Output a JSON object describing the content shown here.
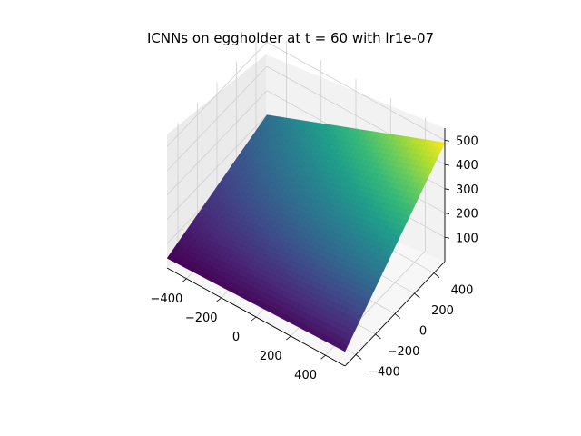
{
  "chart_data": {
    "type": "surface3d",
    "title": "ICNNs on eggholder at t = 60 with lr1e-07",
    "xlabel": "",
    "ylabel": "",
    "zlabel": "",
    "x_ticks": [
      "−400",
      "−200",
      "0",
      "200",
      "400"
    ],
    "y_ticks": [
      "−400",
      "−200",
      "0",
      "200",
      "400"
    ],
    "z_ticks": [
      "100",
      "200",
      "300",
      "400",
      "500"
    ],
    "xlim": [
      -512,
      512
    ],
    "ylim": [
      -512,
      512
    ],
    "zlim": [
      0,
      550
    ],
    "colormap": "viridis",
    "grid": true,
    "surface_corner_values": {
      "x_min_y_min": 40,
      "x_max_y_min": 60,
      "x_min_y_max": 200,
      "x_max_y_max": 490
    }
  }
}
